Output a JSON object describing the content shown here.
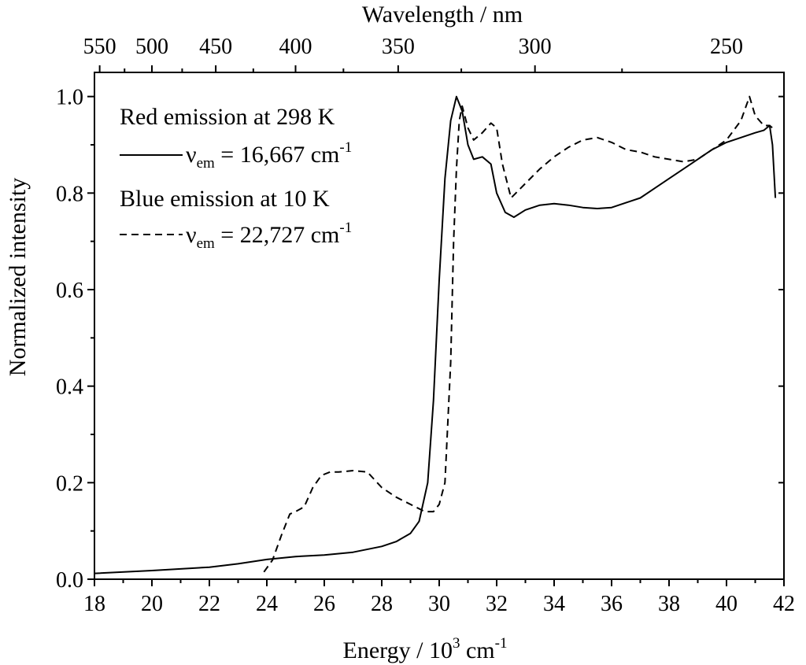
{
  "chart_data": {
    "type": "line",
    "title": "",
    "xlabel": "Energy / 10",
    "xlabel_sup": "3",
    "xlabel_unit": " cm",
    "xlabel_unit_sup": "-1",
    "ylabel": "Normalized intensity",
    "top_axis_label": "Wavelength / nm",
    "xlim": [
      18,
      42
    ],
    "ylim": [
      0,
      1.05
    ],
    "x_ticks": [
      "18",
      "20",
      "22",
      "24",
      "26",
      "28",
      "30",
      "32",
      "34",
      "36",
      "38",
      "40",
      "42"
    ],
    "y_ticks": [
      "0.0",
      "0.2",
      "0.4",
      "0.6",
      "0.8",
      "1.0"
    ],
    "top_ticks": [
      "550",
      "500",
      "450",
      "400",
      "350",
      "300",
      "250"
    ],
    "legend": {
      "heading1": "Red emission at 298 K",
      "entry1_symbol": "ν",
      "entry1_sub": "em",
      "entry1_value": " = 16,667 cm",
      "entry1_sup": "-1",
      "heading2": "Blue emission at 10 K",
      "entry2_symbol": "ν",
      "entry2_sub": "em",
      "entry2_value": " = 22,727 cm",
      "entry2_sup": "-1"
    },
    "series": [
      {
        "name": "Red emission at 298 K, νem = 16,667 cm-1",
        "style": "solid",
        "x": [
          18,
          20,
          22,
          23,
          24,
          25,
          26,
          27,
          28,
          28.5,
          29,
          29.3,
          29.6,
          29.8,
          30.0,
          30.2,
          30.4,
          30.6,
          30.8,
          31.0,
          31.2,
          31.5,
          31.8,
          32.0,
          32.3,
          32.6,
          33.0,
          33.5,
          34.0,
          34.5,
          35.0,
          35.5,
          36.0,
          36.5,
          37.0,
          37.5,
          38.0,
          38.5,
          39.0,
          39.5,
          40.0,
          40.5,
          41.0,
          41.3,
          41.5,
          41.6,
          41.7
        ],
        "y": [
          0.012,
          0.018,
          0.025,
          0.032,
          0.041,
          0.047,
          0.05,
          0.056,
          0.068,
          0.078,
          0.095,
          0.12,
          0.2,
          0.37,
          0.62,
          0.83,
          0.95,
          1.0,
          0.97,
          0.9,
          0.87,
          0.875,
          0.86,
          0.8,
          0.76,
          0.75,
          0.765,
          0.775,
          0.778,
          0.775,
          0.77,
          0.768,
          0.77,
          0.78,
          0.79,
          0.81,
          0.83,
          0.85,
          0.87,
          0.89,
          0.905,
          0.915,
          0.925,
          0.93,
          0.94,
          0.9,
          0.79
        ]
      },
      {
        "name": "Blue emission at 10 K, νem = 22,727 cm-1",
        "style": "dashed",
        "x": [
          23.9,
          24.2,
          24.5,
          24.8,
          25.0,
          25.3,
          25.6,
          25.9,
          26.2,
          26.5,
          27.0,
          27.5,
          28.0,
          28.5,
          29.0,
          29.5,
          29.8,
          30.0,
          30.2,
          30.4,
          30.5,
          30.6,
          30.7,
          30.8,
          31.0,
          31.2,
          31.5,
          31.8,
          32.0,
          32.2,
          32.5,
          33.0,
          33.5,
          34.0,
          34.5,
          35.0,
          35.5,
          36.0,
          36.5,
          37.0,
          37.5,
          38.0,
          38.5,
          39.0,
          39.5,
          40.0,
          40.5,
          40.8,
          41.0,
          41.3,
          41.5,
          41.7
        ],
        "y": [
          0.015,
          0.04,
          0.09,
          0.135,
          0.14,
          0.15,
          0.19,
          0.215,
          0.222,
          0.222,
          0.225,
          0.222,
          0.19,
          0.17,
          0.155,
          0.14,
          0.14,
          0.155,
          0.2,
          0.45,
          0.7,
          0.85,
          0.95,
          0.98,
          0.935,
          0.91,
          0.925,
          0.945,
          0.935,
          0.86,
          0.79,
          0.82,
          0.85,
          0.875,
          0.895,
          0.91,
          0.915,
          0.905,
          0.89,
          0.885,
          0.875,
          0.87,
          0.865,
          0.87,
          0.89,
          0.91,
          0.95,
          1.0,
          0.96,
          0.94,
          0.94,
          0.93
        ]
      }
    ]
  }
}
